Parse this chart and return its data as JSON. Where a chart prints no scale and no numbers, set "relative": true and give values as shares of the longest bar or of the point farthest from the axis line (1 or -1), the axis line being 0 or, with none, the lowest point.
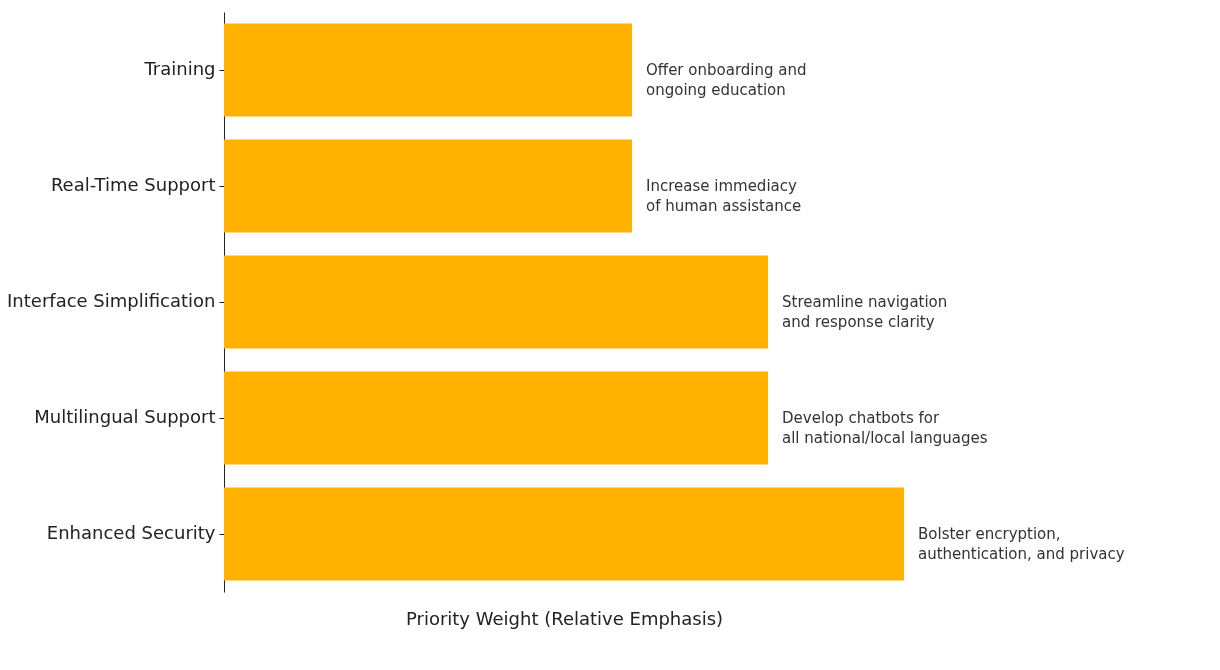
{
  "chart_data": {
    "type": "bar",
    "orientation": "horizontal",
    "relative": true,
    "categories": [
      "Training",
      "Real-Time Support",
      "Interface Simplification",
      "Multilingual Support",
      "Enhanced Security"
    ],
    "values": [
      0.6,
      0.6,
      0.8,
      0.8,
      1.0
    ],
    "color": "#ffb000",
    "xlabel": "Priority Weight (Relative Emphasis)",
    "tick_labels": "y",
    "annotations": [
      {
        "text": "Offer onboarding and\nongoing education",
        "x": 0.6,
        "y": "Training"
      },
      {
        "text": "Increase immediacy\nof human assistance",
        "x": 0.6,
        "y": "Real-Time Support"
      },
      {
        "text": "Streamline navigation\nand response clarity",
        "x": 0.8,
        "y": "Interface Simplification"
      },
      {
        "text": "Develop chatbots for\nall national/local languages",
        "x": 0.8,
        "y": "Multilingual Support"
      },
      {
        "text": "Bolster encryption,\nauthentication, and privacy",
        "x": 1.0,
        "y": "Enhanced Security"
      }
    ]
  }
}
